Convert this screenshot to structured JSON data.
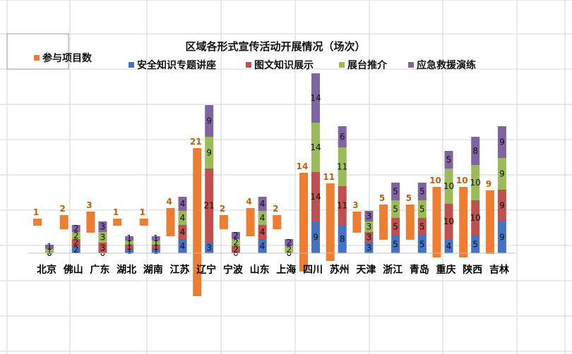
{
  "chart_data": {
    "type": "bar",
    "title": "区域各形式宣传活动开展情况（场次）",
    "categories": [
      "北京",
      "佛山",
      "广东",
      "湖北",
      "湖南",
      "江苏",
      "辽宁",
      "宁波",
      "山东",
      "上海",
      "四川",
      "苏州",
      "天津",
      "浙江",
      "青岛",
      "重庆",
      "陕西",
      "吉林"
    ],
    "series": [
      {
        "name": "参与项目数",
        "color": "#ED7D31",
        "values": [
          1,
          2,
          3,
          1,
          1,
          4,
          21,
          2,
          4,
          2,
          14,
          11,
          3,
          5,
          5,
          10,
          10,
          9
        ]
      },
      {
        "name": "安全知识专题讲座",
        "color": "#4472C4",
        "values": [
          0,
          2,
          0,
          1,
          1,
          4,
          3,
          0,
          4,
          0,
          9,
          8,
          3,
          5,
          5,
          4,
          5,
          9
        ]
      },
      {
        "name": "图文知识展示",
        "color": "#C0504D",
        "values": [
          0,
          2,
          3,
          1,
          1,
          4,
          21,
          2,
          4,
          0,
          14,
          11,
          3,
          5,
          5,
          10,
          10,
          9
        ]
      },
      {
        "name": "展台推介",
        "color": "#9BBB59",
        "values": [
          1,
          2,
          3,
          1,
          1,
          4,
          9,
          2,
          4,
          2,
          14,
          11,
          3,
          5,
          5,
          10,
          10,
          9
        ]
      },
      {
        "name": "应急救援演练",
        "color": "#8064A2",
        "values": [
          1,
          2,
          3,
          1,
          1,
          4,
          9,
          2,
          4,
          2,
          14,
          6,
          3,
          5,
          5,
          5,
          8,
          9
        ]
      }
    ],
    "xlabel": "",
    "ylabel": "",
    "ylim": [
      0,
      50
    ],
    "grid": false,
    "legend": "top"
  }
}
